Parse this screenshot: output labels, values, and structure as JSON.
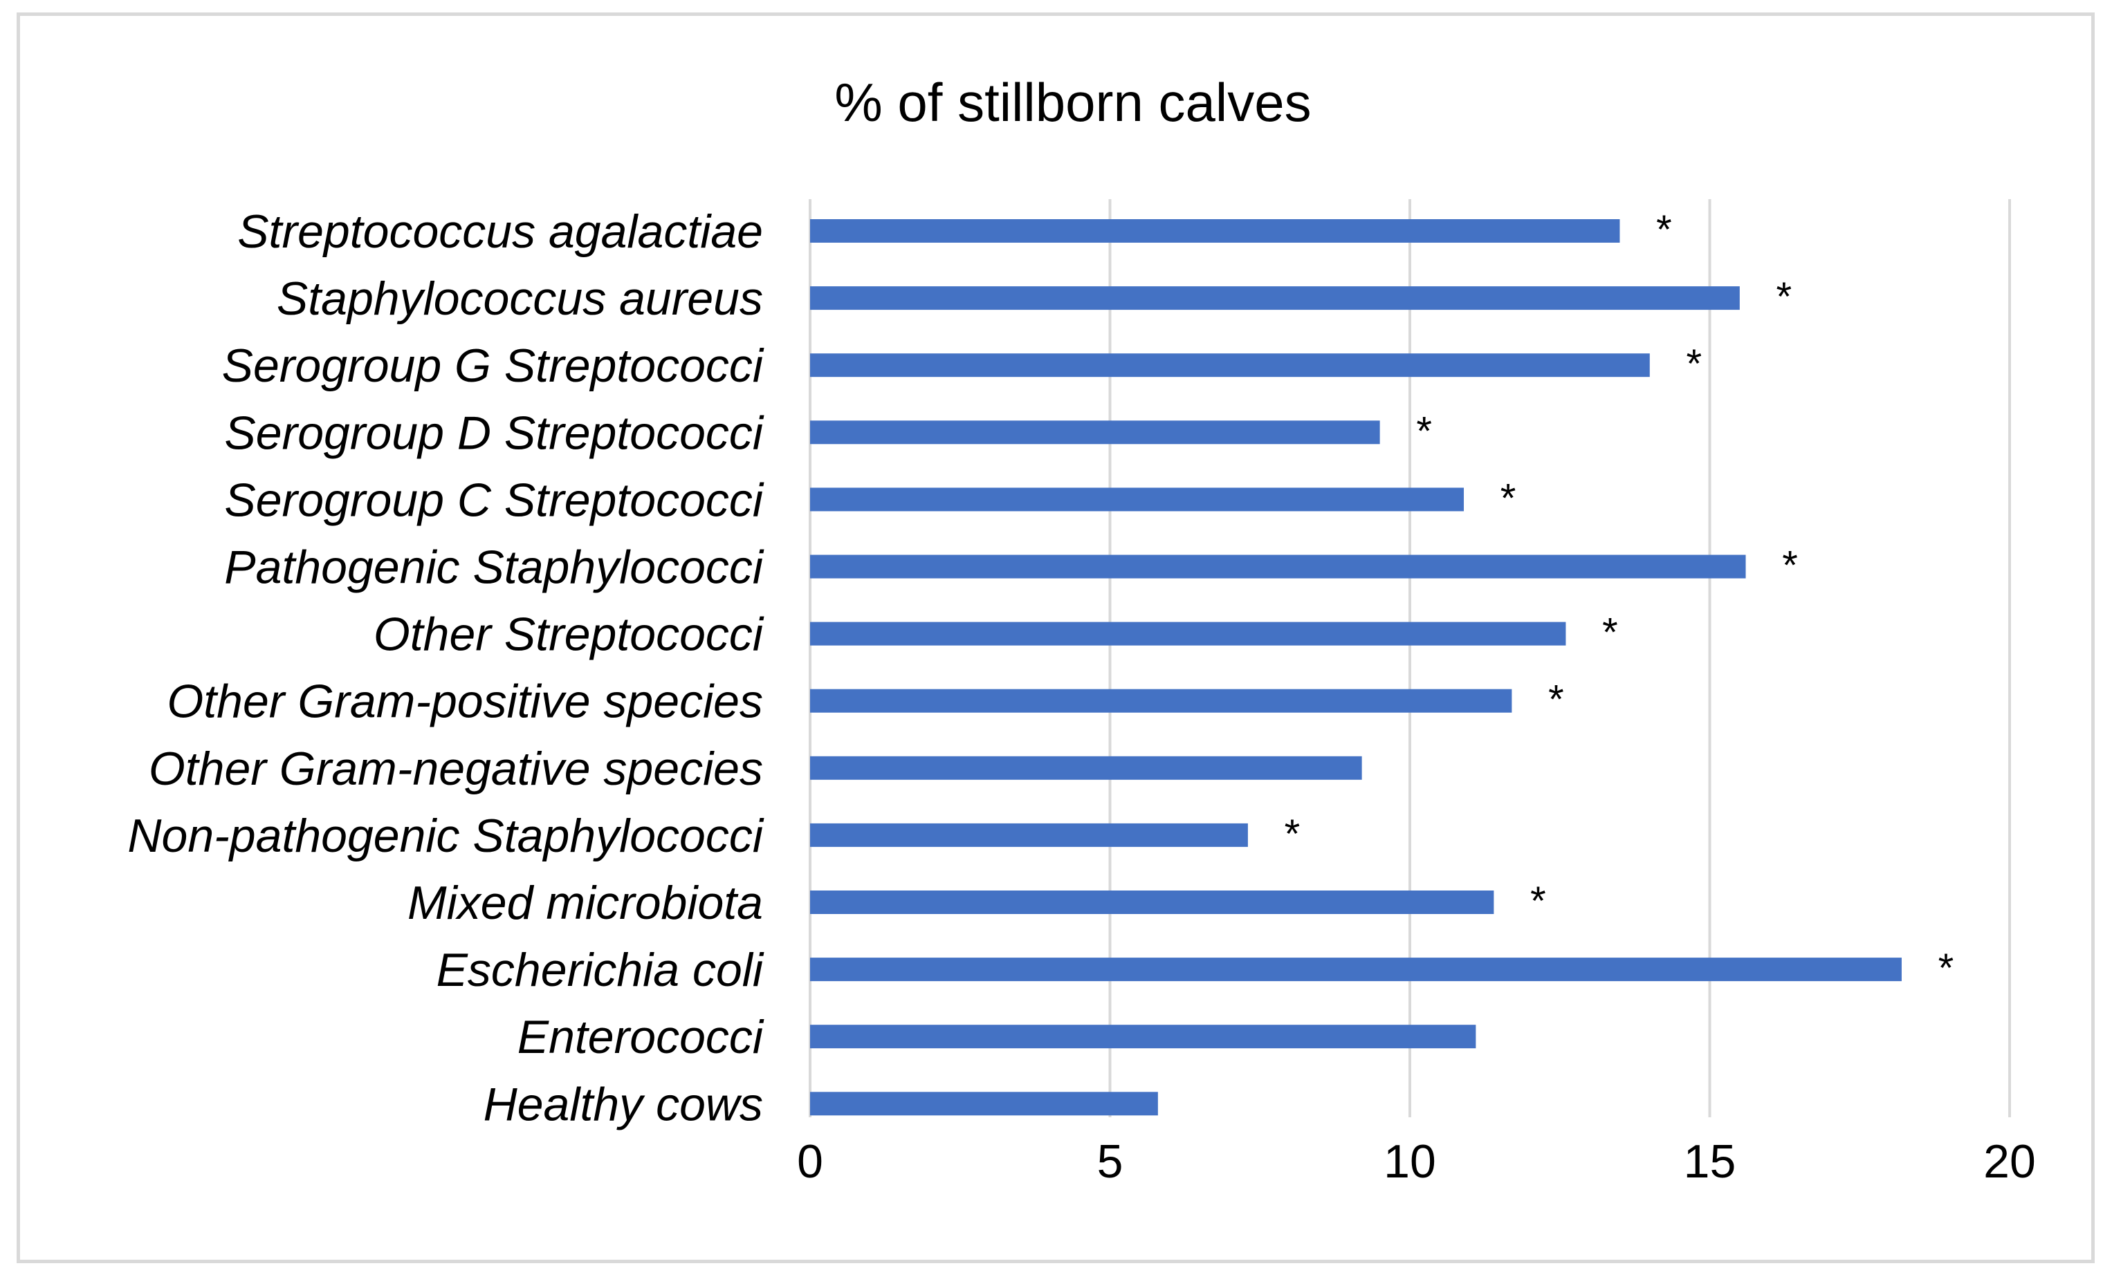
{
  "chart_data": {
    "type": "bar",
    "orientation": "horizontal",
    "title": "% of stillborn calves",
    "xlabel": "",
    "ylabel": "",
    "xlim": [
      0,
      20
    ],
    "ticks": [
      0,
      5,
      10,
      15,
      20
    ],
    "grid": true,
    "bar_color": "#4472C4",
    "categories": [
      "Streptococcus agalactiae",
      "Staphylococcus aureus",
      "Serogroup G  Streptococci",
      "Serogroup D  Streptococci",
      "Serogroup C  Streptococci",
      "Pathogenic Staphylococci",
      "Other Streptococci",
      "Other Gram-positive species",
      "Other Gram-negative species",
      "Non-pathogenic Staphylococci",
      "Mixed microbiota",
      "Escherichia coli",
      "Enterococci",
      "Healthy cows"
    ],
    "values": [
      13.5,
      15.5,
      14.0,
      9.5,
      10.9,
      15.6,
      12.6,
      11.7,
      9.2,
      7.3,
      11.4,
      18.2,
      11.1,
      5.8
    ],
    "annotations": [
      "*",
      "*",
      "*",
      "*",
      "*",
      "*",
      "*",
      "*",
      "",
      "*",
      "*",
      "*",
      "",
      ""
    ]
  }
}
